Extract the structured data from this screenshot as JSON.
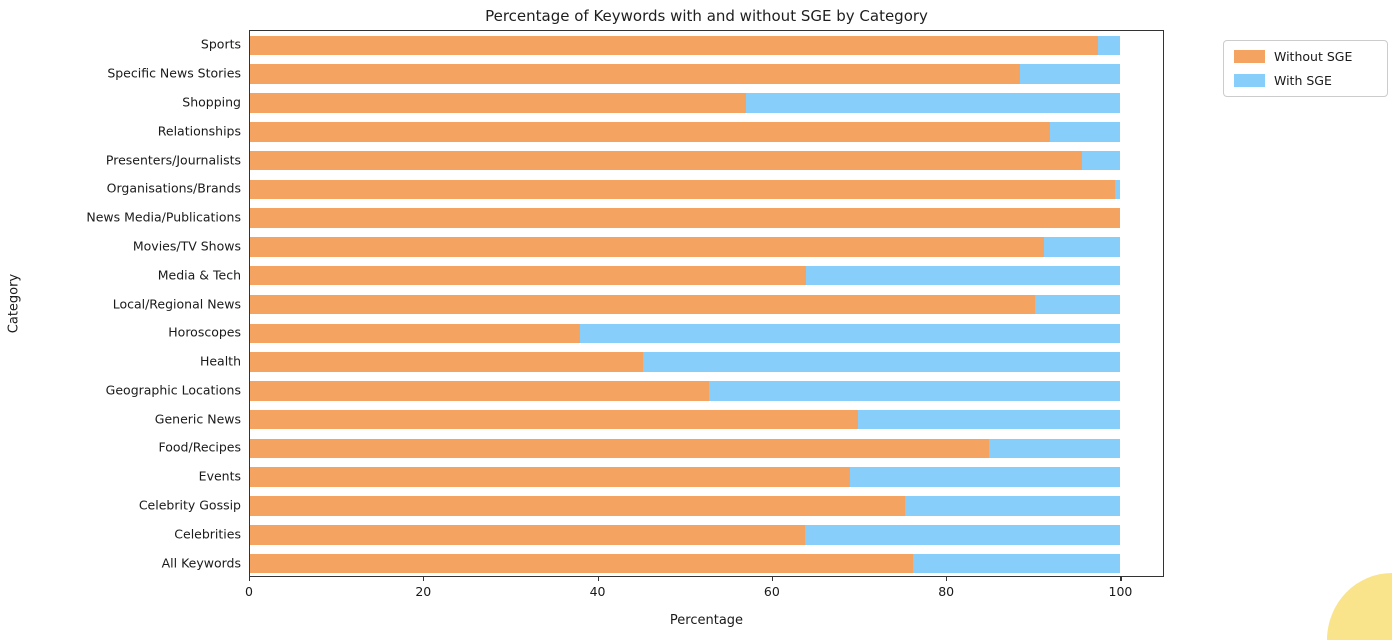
{
  "title": "Percentage of Keywords with and without SGE by Category",
  "colors": {
    "without_sge": "#F4A460",
    "with_sge": "#87CEFA",
    "spine": "#333333",
    "text": "#1a1a1a",
    "legend_border": "#cccccc",
    "decor_circle": "#FAE48B"
  },
  "legend": {
    "items": [
      {
        "label": "Without SGE",
        "color_key": "without_sge"
      },
      {
        "label": "With SGE",
        "color_key": "with_sge"
      }
    ]
  },
  "chart_data": {
    "type": "bar",
    "orientation": "horizontal",
    "stacked": true,
    "title": "Percentage of Keywords with and without SGE by Category",
    "xlabel": "Percentage",
    "ylabel": "Category",
    "xlim": [
      0,
      105
    ],
    "xticks": [
      0,
      20,
      40,
      60,
      80,
      100
    ],
    "grid": false,
    "legend_position": "outside upper right",
    "categories": [
      "Sports",
      "Specific News Stories",
      "Shopping",
      "Relationships",
      "Presenters/Journalists",
      "Organisations/Brands",
      "News Media/Publications",
      "Movies/TV Shows",
      "Media & Tech",
      "Local/Regional News",
      "Horoscopes",
      "Health",
      "Geographic Locations",
      "Generic News",
      "Food/Recipes",
      "Events",
      "Celebrity Gossip",
      "Celebrities",
      "All Keywords"
    ],
    "series": [
      {
        "name": "Without SGE",
        "values": [
          97.5,
          88.5,
          57.0,
          92.0,
          95.7,
          99.5,
          100.0,
          91.3,
          64.0,
          90.3,
          38.0,
          45.2,
          52.8,
          69.9,
          85.0,
          69.0,
          75.3,
          63.8,
          76.2
        ]
      },
      {
        "name": "With SGE",
        "values": [
          2.5,
          11.5,
          43.0,
          8.0,
          4.3,
          0.5,
          0.0,
          8.7,
          36.0,
          9.7,
          62.0,
          54.8,
          47.2,
          30.1,
          15.0,
          31.0,
          24.7,
          36.2,
          23.8
        ]
      }
    ]
  }
}
